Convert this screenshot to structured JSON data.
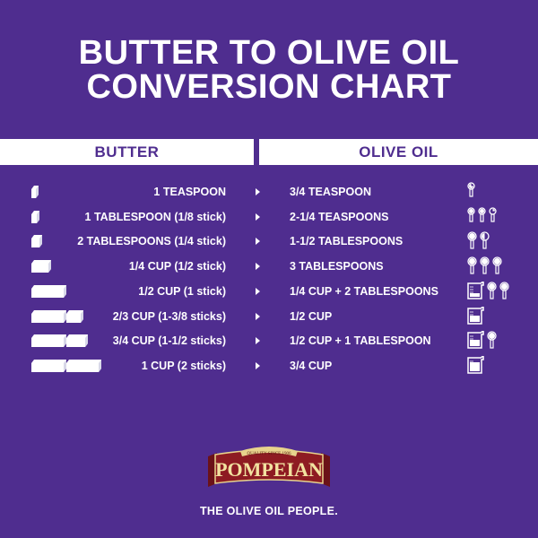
{
  "title": {
    "line1": "BUTTER TO OLIVE OIL",
    "line2": "CONVERSION CHART"
  },
  "headers": {
    "butter": "BUTTER",
    "olive_oil": "OLIVE OIL"
  },
  "colors": {
    "background": "#4f2d8f",
    "text": "#ffffff",
    "logo_red": "#8e1b22",
    "logo_gold": "#e7d38c"
  },
  "rows": [
    {
      "butter": "1 TEASPOON",
      "olive_oil": "3/4 TEASPOON",
      "butter_icon": "butter-sliver-tiny",
      "oil_icons": [
        "teaspoon-3/4"
      ]
    },
    {
      "butter": "1 TABLESPOON (1/8 stick)",
      "olive_oil": "2-1/4 TEASPOONS",
      "butter_icon": "butter-sliver-small",
      "oil_icons": [
        "teaspoon-full",
        "teaspoon-full",
        "teaspoon-1/4"
      ]
    },
    {
      "butter": "2 TABLESPOONS (1/4 stick)",
      "olive_oil": "1-1/2 TABLESPOONS",
      "butter_icon": "butter-sliver",
      "oil_icons": [
        "tablespoon-full",
        "tablespoon-half"
      ]
    },
    {
      "butter": "1/4 CUP (1/2 stick)",
      "olive_oil": "3 TABLESPOONS",
      "butter_icon": "butter-half-stick",
      "oil_icons": [
        "tablespoon-full",
        "tablespoon-full",
        "tablespoon-full"
      ]
    },
    {
      "butter": "1/2 CUP (1 stick)",
      "olive_oil": "1/4 CUP + 2 TABLESPOONS",
      "butter_icon": "butter-stick",
      "oil_icons": [
        "cup-1/4",
        "tablespoon-full",
        "tablespoon-full"
      ]
    },
    {
      "butter": "2/3 CUP (1-3/8 sticks)",
      "olive_oil": "1/2 CUP",
      "butter_icon": "butter-stick-plus-small",
      "oil_icons": [
        "cup-1/2"
      ]
    },
    {
      "butter": "3/4 CUP (1-1/2 sticks)",
      "olive_oil": "1/2 CUP + 1 TABLESPOON",
      "butter_icon": "butter-stick-plus-half",
      "oil_icons": [
        "cup-1/2",
        "tablespoon-full"
      ]
    },
    {
      "butter": "1 CUP (2 sticks)",
      "olive_oil": "3/4 CUP",
      "butter_icon": "butter-two-sticks",
      "oil_icons": [
        "cup-3/4"
      ]
    }
  ],
  "logo": {
    "brand": "POMPEIAN",
    "banner": "QUALITY SINCE 1906"
  },
  "tagline": "THE OLIVE OIL PEOPLE."
}
